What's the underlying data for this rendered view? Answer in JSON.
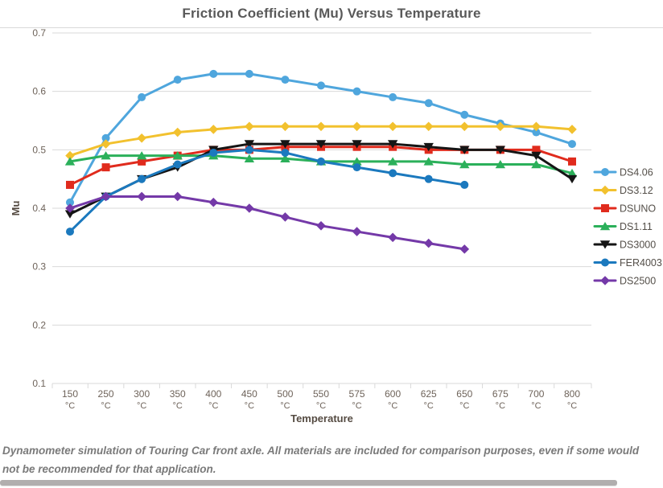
{
  "page": {
    "caption": "Dynamometer simulation of Touring Car front axle. All materials are included for comparison purposes, even if some would not be recommended for that application."
  },
  "theme": {
    "title_color": "#595959",
    "tick_label_color": "#6e635a",
    "axis_title_color": "#554b42",
    "legend_label_color": "#544f49",
    "gridline_color": "#d9d9d9",
    "caption_color": "#7a7a7a",
    "scrollbar_color": "#b1aeae"
  },
  "chart_data": {
    "type": "line",
    "title": "Friction Coefficient (Mu) Versus Temperature",
    "xlabel": "Temperature",
    "ylabel": "Mu",
    "x_tick_unit": "°C",
    "ylim": [
      0.1,
      0.7
    ],
    "ytick_step": 0.1,
    "grid": true,
    "legend_position": "right",
    "categories": [
      "150",
      "250",
      "300",
      "350",
      "400",
      "450",
      "500",
      "550",
      "575",
      "600",
      "625",
      "650",
      "675",
      "700",
      "800"
    ],
    "series": [
      {
        "name": "DS4.06",
        "color": "#4fa6dd",
        "marker": "circle",
        "values": [
          0.41,
          0.52,
          0.59,
          0.62,
          0.63,
          0.63,
          0.62,
          0.61,
          0.6,
          0.59,
          0.58,
          0.56,
          0.545,
          0.53,
          0.51
        ]
      },
      {
        "name": "DS3.12",
        "color": "#f2c12e",
        "marker": "diamond",
        "values": [
          0.49,
          0.51,
          0.52,
          0.53,
          0.535,
          0.54,
          0.54,
          0.54,
          0.54,
          0.54,
          0.54,
          0.54,
          0.54,
          0.54,
          0.535
        ]
      },
      {
        "name": "DSUNO",
        "color": "#e02b1d",
        "marker": "square",
        "values": [
          0.44,
          0.47,
          0.48,
          0.49,
          0.5,
          0.5,
          0.505,
          0.505,
          0.505,
          0.505,
          0.5,
          0.5,
          0.5,
          0.5,
          0.48
        ]
      },
      {
        "name": "DS1.11",
        "color": "#2bb05a",
        "marker": "triangle-up",
        "values": [
          0.48,
          0.49,
          0.49,
          0.49,
          0.49,
          0.485,
          0.485,
          0.48,
          0.48,
          0.48,
          0.48,
          0.475,
          0.475,
          0.475,
          0.46
        ]
      },
      {
        "name": "DS3000",
        "color": "#151515",
        "marker": "triangle-down",
        "values": [
          0.39,
          0.42,
          0.45,
          0.47,
          0.5,
          0.51,
          0.51,
          0.51,
          0.51,
          0.51,
          0.505,
          0.5,
          0.5,
          0.49,
          0.45
        ]
      },
      {
        "name": "FER4003",
        "color": "#1b79be",
        "marker": "circle",
        "values": [
          0.36,
          0.42,
          0.45,
          0.475,
          0.495,
          0.5,
          0.495,
          0.48,
          0.47,
          0.46,
          0.45,
          0.44,
          null,
          null,
          null
        ]
      },
      {
        "name": "DS2500",
        "color": "#7439a8",
        "marker": "diamond",
        "values": [
          0.4,
          0.42,
          0.42,
          0.42,
          0.41,
          0.4,
          0.385,
          0.37,
          0.36,
          0.35,
          0.34,
          0.33,
          null,
          null,
          null
        ]
      }
    ]
  }
}
